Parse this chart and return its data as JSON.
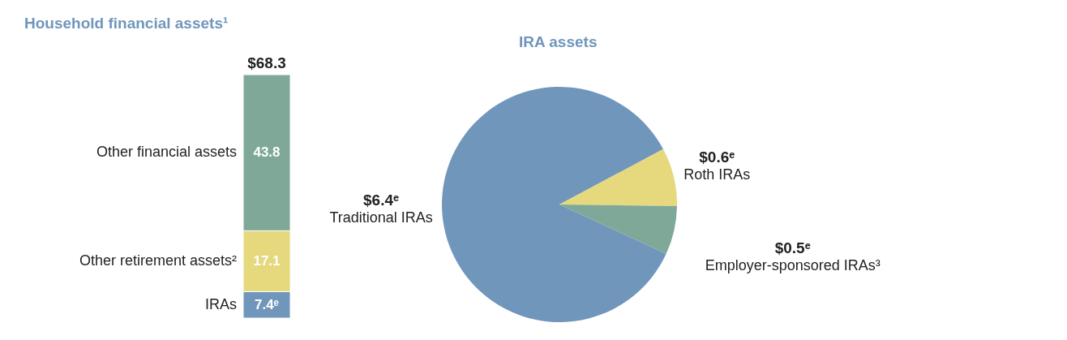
{
  "chart_data": [
    {
      "type": "bar",
      "title": "Household financial assets¹",
      "stacked": true,
      "categories": [
        null
      ],
      "totals": [
        "$68.3"
      ],
      "series": [
        {
          "name": "IRAs",
          "color": "#7096bc",
          "values": [
            7.4
          ],
          "value_labels": [
            "7.4ᵉ"
          ]
        },
        {
          "name": "Other retirement assets²",
          "color": "#e6d87c",
          "values": [
            17.1
          ],
          "value_labels": [
            "17.1"
          ]
        },
        {
          "name": "Other financial assets",
          "color": "#7fa898",
          "values": [
            43.8
          ],
          "value_labels": [
            "43.8"
          ]
        }
      ]
    },
    {
      "type": "pie",
      "title": "IRA assets",
      "categories": [
        "Traditional IRAs",
        "Roth IRAs",
        "Employer-sponsored IRAs³"
      ],
      "values": [
        6.4,
        0.6,
        0.5
      ],
      "colors": [
        "#7096bc",
        "#e6d87c",
        "#7fa898"
      ],
      "value_labels": [
        "$6.4ᵉ",
        "$0.6ᵉ",
        "$0.5ᵉ"
      ]
    }
  ]
}
